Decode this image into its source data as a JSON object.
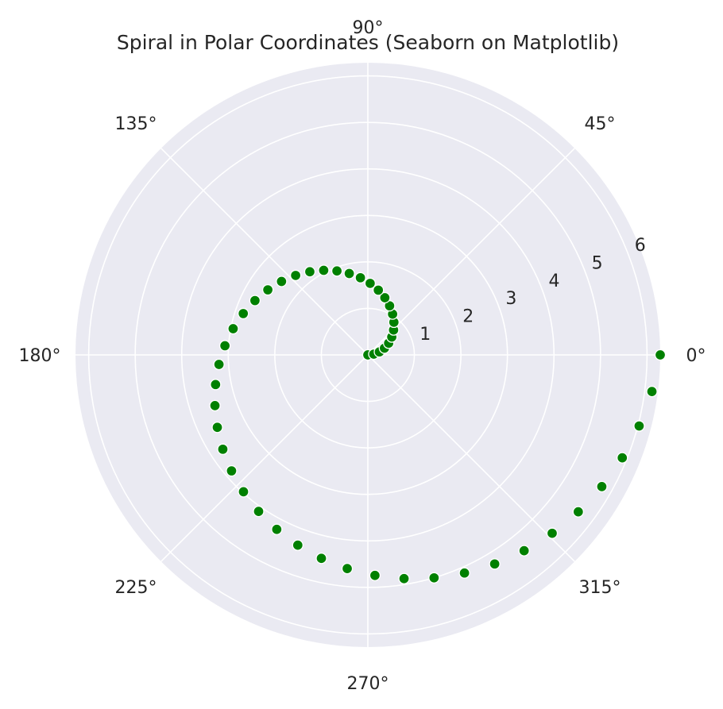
{
  "chart_data": {
    "type": "scatter",
    "coordinate_system": "polar",
    "title": "Spiral in Polar Coordinates (Seaborn on Matplotlib)",
    "r_max": 6.283,
    "r_ticks": [
      1,
      2,
      3,
      4,
      5,
      6
    ],
    "r_tick_labels": [
      "1",
      "2",
      "3",
      "4",
      "5",
      "6"
    ],
    "theta_ticks_deg": [
      0,
      45,
      90,
      135,
      180,
      225,
      270,
      315
    ],
    "theta_tick_labels": [
      "0°",
      "45°",
      "90°",
      "135°",
      "180°",
      "225°",
      "270°",
      "315°"
    ],
    "grid": true,
    "series": [
      {
        "point_count": 50,
        "theta_start_deg": 0,
        "theta_end_deg": 360,
        "r_equals_theta_radians": true
      }
    ],
    "colors": {
      "background": "#eaeaf2",
      "grid": "#ffffff",
      "marker_fill": "#008000",
      "marker_edge": "#ffffff",
      "text": "#262626"
    }
  }
}
